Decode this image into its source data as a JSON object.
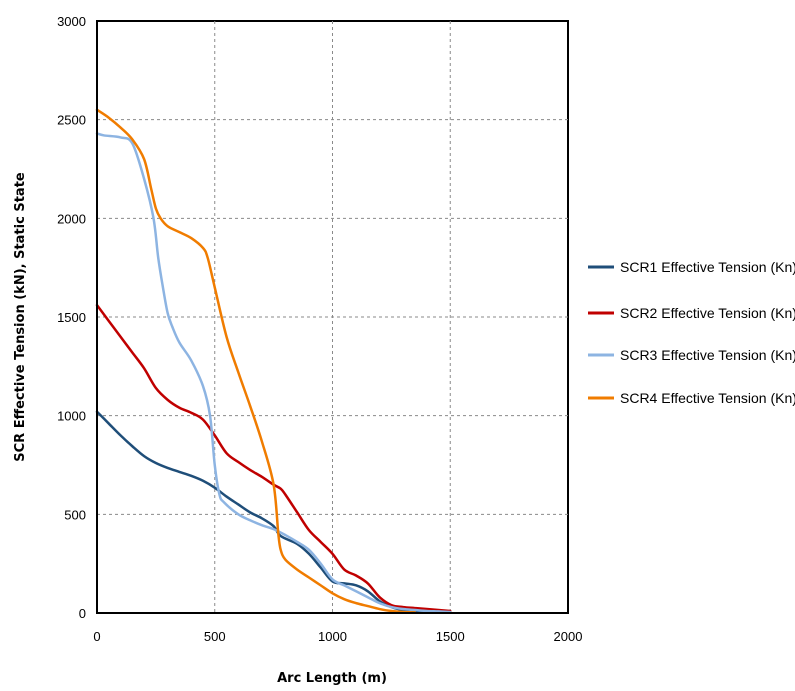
{
  "chart_data": {
    "type": "line",
    "title": "",
    "xlabel": "Arc Length (m)",
    "ylabel": "SCR Effective Tension (kN), Static State",
    "xlim": [
      0,
      2000
    ],
    "ylim": [
      0,
      3000
    ],
    "x_ticks": [
      "0",
      "500",
      "1000",
      "1500",
      "2000"
    ],
    "y_ticks": [
      "0",
      "500",
      "1000",
      "1500",
      "2000",
      "2500",
      "3000"
    ],
    "grid": "dashed",
    "legend_position": "right",
    "series": [
      {
        "name": "SCR1 Effective Tension (Kn)",
        "color": "#1f4e79",
        "x": [
          0,
          50,
          100,
          150,
          200,
          250,
          300,
          350,
          400,
          450,
          500,
          550,
          600,
          650,
          700,
          750,
          780,
          850,
          900,
          950,
          1000,
          1050,
          1100,
          1150,
          1200,
          1250,
          1300,
          1350,
          1400,
          1450,
          1500
        ],
        "y": [
          1020,
          960,
          900,
          845,
          795,
          760,
          735,
          715,
          695,
          670,
          635,
          590,
          550,
          510,
          480,
          440,
          390,
          350,
          300,
          230,
          160,
          150,
          140,
          110,
          60,
          30,
          15,
          10,
          8,
          5,
          5
        ]
      },
      {
        "name": "SCR2 Effective Tension (Kn)",
        "color": "#c00000",
        "x": [
          0,
          50,
          100,
          150,
          200,
          250,
          300,
          350,
          400,
          450,
          500,
          550,
          600,
          650,
          700,
          750,
          780,
          800,
          850,
          900,
          950,
          1000,
          1050,
          1100,
          1150,
          1200,
          1250,
          1300,
          1350,
          1400,
          1450,
          1500
        ],
        "y": [
          1560,
          1480,
          1400,
          1320,
          1240,
          1140,
          1080,
          1040,
          1015,
          980,
          900,
          810,
          765,
          725,
          690,
          650,
          630,
          600,
          510,
          420,
          360,
          300,
          220,
          190,
          150,
          80,
          40,
          30,
          25,
          20,
          15,
          10
        ]
      },
      {
        "name": "SCR3 Effective Tension (Kn)",
        "color": "#8db4e2",
        "x": [
          0,
          30,
          100,
          150,
          200,
          240,
          260,
          280,
          300,
          320,
          350,
          400,
          450,
          480,
          500,
          520,
          540,
          600,
          650,
          700,
          750,
          800,
          850,
          900,
          950,
          1000,
          1050,
          1100,
          1150,
          1200,
          1250,
          1300,
          1350,
          1400,
          1450,
          1500
        ],
        "y": [
          2430,
          2420,
          2410,
          2380,
          2200,
          2000,
          1800,
          1650,
          1520,
          1450,
          1370,
          1280,
          1150,
          1000,
          750,
          600,
          560,
          500,
          470,
          445,
          425,
          395,
          360,
          320,
          250,
          170,
          140,
          110,
          80,
          50,
          30,
          20,
          15,
          10,
          8,
          5
        ]
      },
      {
        "name": "SCR4 Effective Tension (Kn)",
        "color": "#f07c00",
        "x": [
          0,
          50,
          100,
          150,
          200,
          230,
          250,
          270,
          300,
          350,
          400,
          450,
          470,
          500,
          550,
          600,
          650,
          700,
          750,
          770,
          780,
          800,
          850,
          900,
          950,
          1000,
          1050,
          1100,
          1150,
          1200,
          1250,
          1300,
          1350
        ],
        "y": [
          2550,
          2510,
          2460,
          2400,
          2300,
          2150,
          2050,
          2000,
          1960,
          1930,
          1900,
          1850,
          1800,
          1650,
          1400,
          1220,
          1050,
          870,
          650,
          400,
          320,
          270,
          220,
          180,
          140,
          100,
          70,
          50,
          35,
          20,
          10,
          5,
          3
        ]
      }
    ]
  }
}
